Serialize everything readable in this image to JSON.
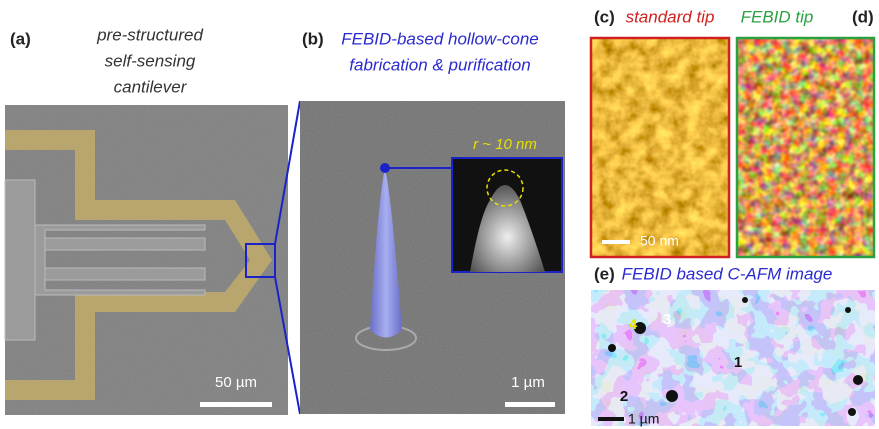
{
  "panels": {
    "a": {
      "label": "(a)",
      "caption": [
        "pre-structured",
        "self-sensing",
        "cantilever"
      ],
      "scale_bar": "50 µm"
    },
    "b": {
      "label": "(b)",
      "caption": [
        "FEBID-based hollow-cone",
        "fabrication & purification"
      ],
      "inset_label": "r ~ 10 nm",
      "scale_bar": "1 µm"
    },
    "c": {
      "label": "(c)",
      "caption": "standard tip",
      "scale_bar": "50 nm"
    },
    "d": {
      "label": "(d)",
      "caption": "FEBID tip"
    },
    "e": {
      "label": "(e)",
      "caption": "FEBID based C-AFM image",
      "regions": [
        "4",
        "3",
        "1",
        "2"
      ],
      "scale_bar": "1 µm"
    }
  }
}
